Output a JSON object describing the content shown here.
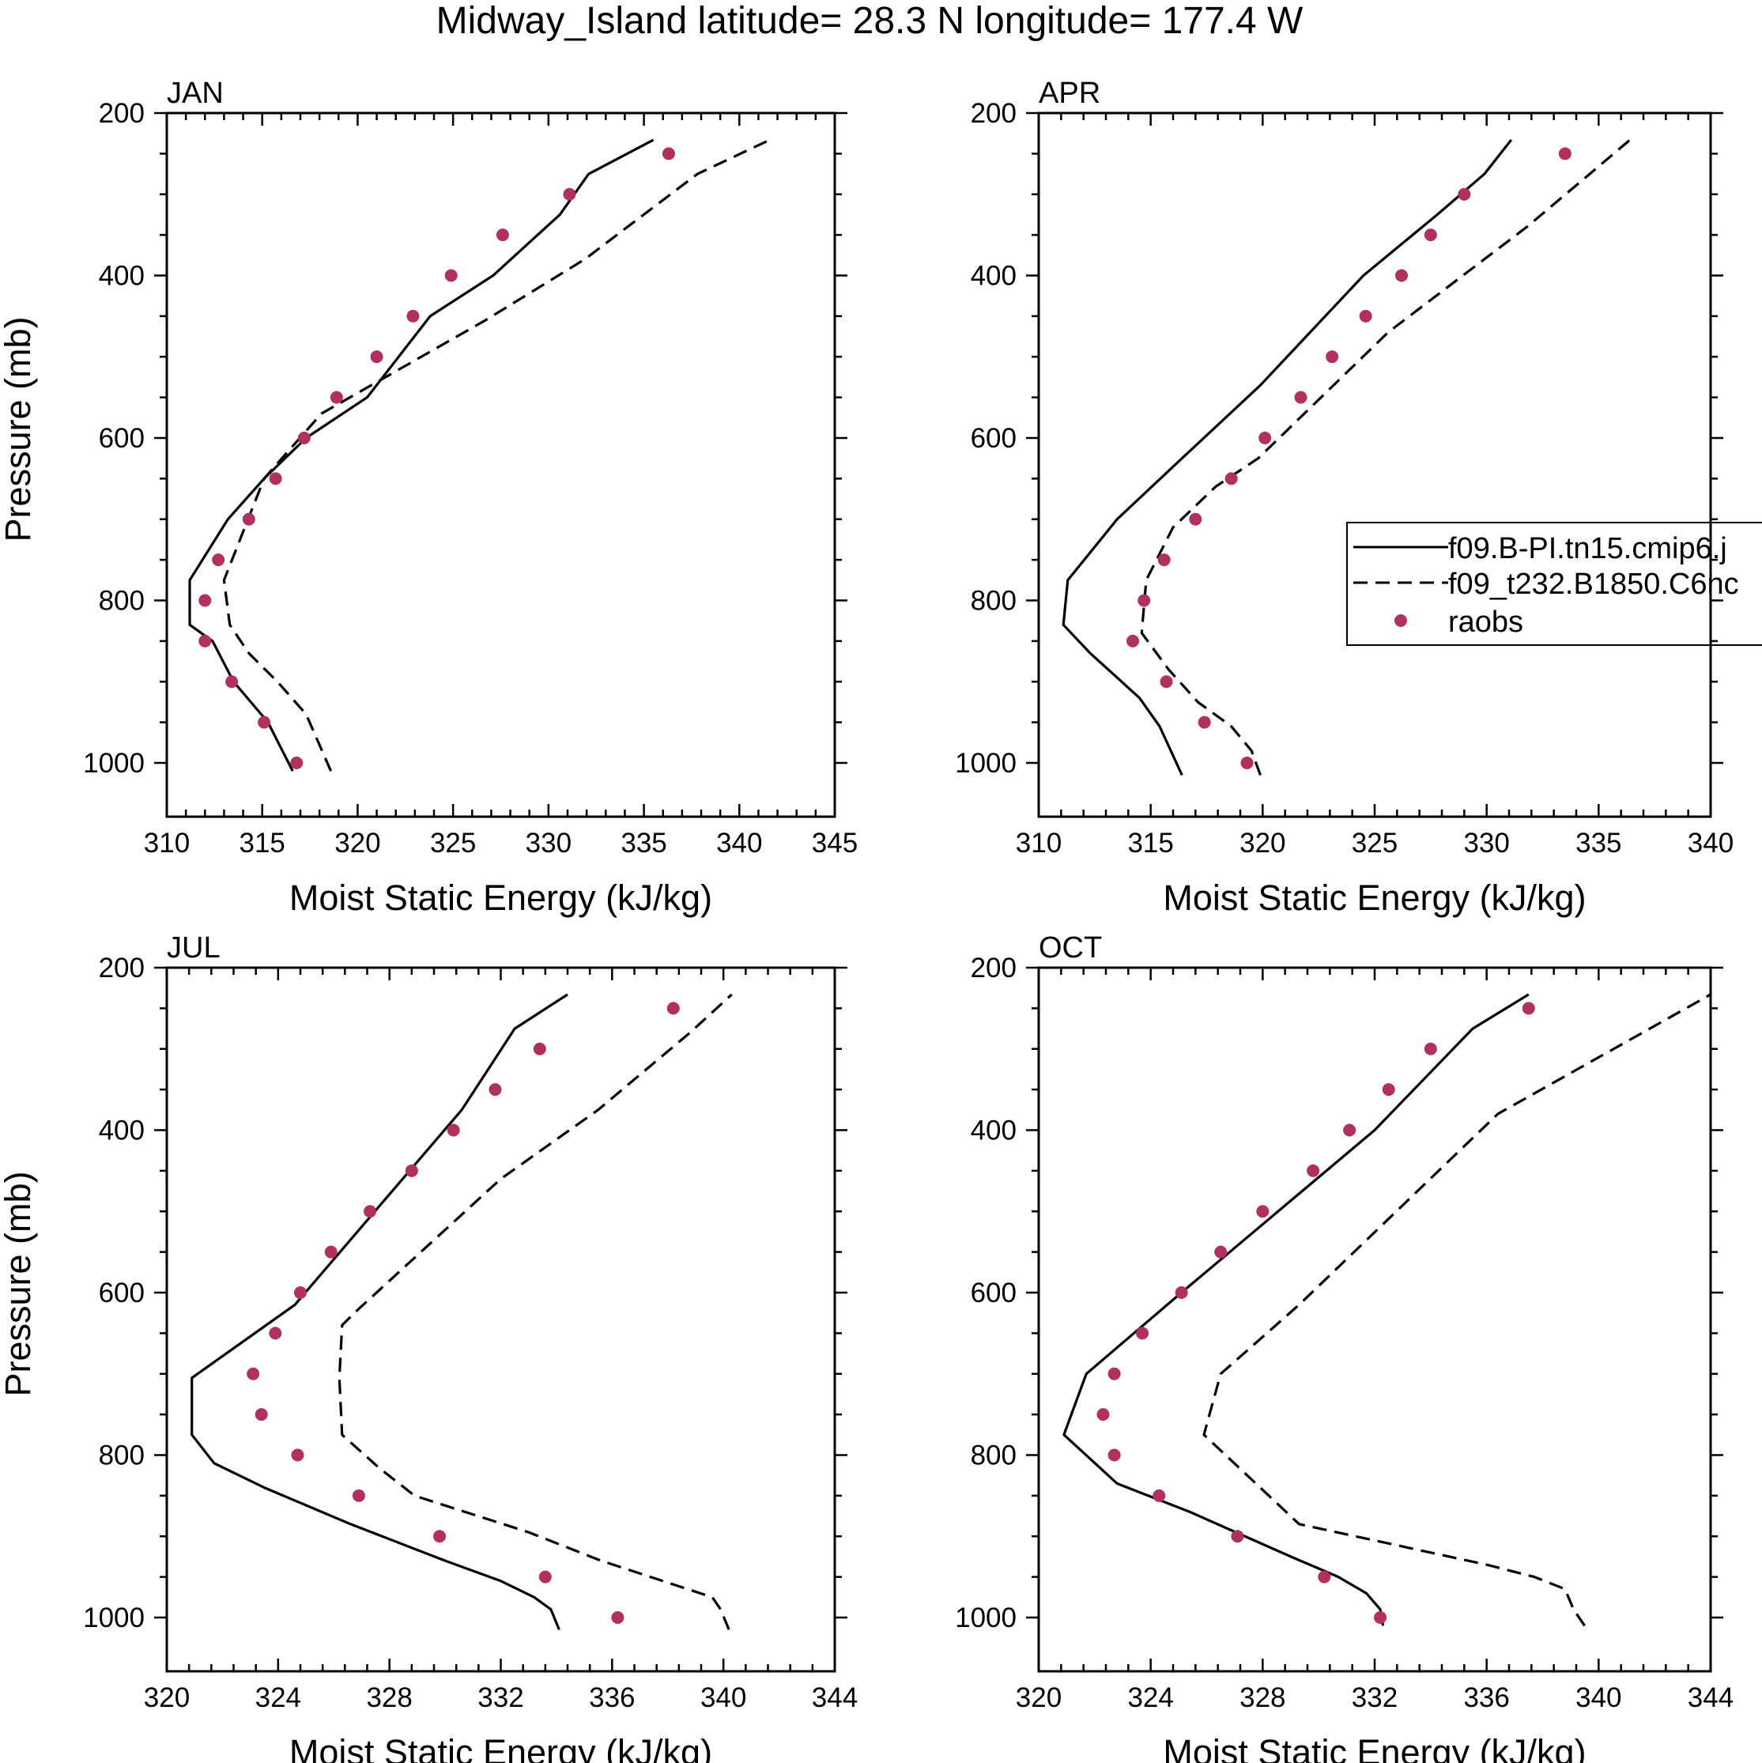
{
  "figure_title": "Midway_Island  latitude= 28.3 N longitude= 177.4 W",
  "chart_data": [
    {
      "type": "line",
      "panel": "JAN",
      "xlabel": "Moist Static Energy (kJ/kg)",
      "ylabel": "Pressure (mb)",
      "xlim": [
        310,
        345
      ],
      "xticks": [
        310,
        315,
        320,
        325,
        330,
        335,
        340,
        345
      ],
      "ylim": [
        200,
        1000
      ],
      "yticks": [
        200,
        400,
        600,
        800,
        1000
      ],
      "y_reversed": true,
      "grid": false,
      "series": [
        {
          "name": "f09.B-PI.tn15.cmip6.j",
          "style": "solid",
          "x": [
            316.6,
            315.3,
            313.5,
            312.4,
            311.2,
            311.2,
            313.2,
            315.1,
            317.3,
            320.5,
            323.8,
            327.1,
            330.6,
            332.1,
            335.5
          ],
          "y": [
            1010,
            950,
            900,
            850,
            830,
            775,
            700,
            650,
            600,
            550,
            450,
            400,
            325,
            275,
            233
          ]
        },
        {
          "name": "f09_t232.B1850.C6nc",
          "style": "dashed",
          "x": [
            318.6,
            317.3,
            315.8,
            314.3,
            313.3,
            313.0,
            315.1,
            318.1,
            326.7,
            331.9,
            337.8,
            341.6
          ],
          "y": [
            1010,
            940,
            900,
            865,
            830,
            775,
            650,
            570,
            455,
            380,
            275,
            233
          ]
        },
        {
          "name": "raobs",
          "style": "markers",
          "x": [
            316.8,
            315.1,
            313.4,
            312.0,
            312.0,
            312.7,
            314.3,
            315.7,
            317.2,
            318.9,
            321.0,
            322.9,
            324.9,
            327.6,
            331.1,
            336.3
          ],
          "y": [
            1000,
            950,
            900,
            850,
            800,
            750,
            700,
            650,
            600,
            550,
            500,
            450,
            400,
            350,
            300,
            250
          ]
        }
      ]
    },
    {
      "type": "line",
      "panel": "APR",
      "xlabel": "Moist Static Energy (kJ/kg)",
      "ylabel": "",
      "xlim": [
        310,
        340
      ],
      "xticks": [
        310,
        315,
        320,
        325,
        330,
        335,
        340
      ],
      "ylim": [
        200,
        1000
      ],
      "yticks": [
        200,
        400,
        600,
        800,
        1000
      ],
      "y_reversed": true,
      "grid": false,
      "series": [
        {
          "name": "f09.B-PI.tn15.cmip6.j",
          "style": "solid",
          "x": [
            316.4,
            315.4,
            314.5,
            313.5,
            312.3,
            311.1,
            311.3,
            313.5,
            316.4,
            319.9,
            324.5,
            327.8,
            329.9,
            331.1
          ],
          "y": [
            1015,
            955,
            920,
            895,
            865,
            830,
            775,
            700,
            625,
            535,
            400,
            325,
            275,
            233
          ]
        },
        {
          "name": "f09_t232.B1850.C6nc",
          "style": "dashed",
          "x": [
            319.9,
            319.5,
            318.6,
            317.1,
            315.8,
            314.6,
            314.8,
            316.0,
            317.9,
            319.8,
            325.6,
            331.8,
            334.6,
            336.4
          ],
          "y": [
            1015,
            985,
            955,
            925,
            885,
            840,
            775,
            710,
            660,
            625,
            470,
            340,
            275,
            233
          ]
        },
        {
          "name": "raobs",
          "style": "markers",
          "x": [
            319.3,
            317.4,
            315.7,
            314.2,
            314.7,
            315.6,
            317.0,
            318.6,
            320.1,
            321.7,
            323.1,
            324.6,
            326.2,
            327.5,
            329.0,
            333.5
          ],
          "y": [
            1000,
            950,
            900,
            850,
            800,
            750,
            700,
            650,
            600,
            550,
            500,
            450,
            400,
            350,
            300,
            250
          ]
        }
      ]
    },
    {
      "type": "line",
      "panel": "JUL",
      "xlabel": "Moist Static Energy (kJ/kg)",
      "ylabel": "Pressure (mb)",
      "xlim": [
        320,
        344
      ],
      "xticks": [
        320,
        324,
        328,
        332,
        336,
        340,
        344
      ],
      "ylim": [
        200,
        1000
      ],
      "yticks": [
        200,
        400,
        600,
        800,
        1000
      ],
      "y_reversed": true,
      "grid": false,
      "series": [
        {
          "name": "f09.B-PI.tn15.cmip6.j",
          "style": "solid",
          "x": [
            334.1,
            333.8,
            333.2,
            332.0,
            330.0,
            326.6,
            323.5,
            321.7,
            320.9,
            320.9,
            324.6,
            330.6,
            332.5,
            334.4
          ],
          "y": [
            1015,
            990,
            975,
            955,
            930,
            885,
            840,
            810,
            775,
            705,
            615,
            375,
            275,
            233
          ]
        },
        {
          "name": "f09_t232.B1850.C6nc",
          "style": "dashed",
          "x": [
            340.2,
            339.9,
            339.6,
            335.6,
            333.0,
            328.9,
            327.6,
            326.3,
            326.2,
            326.3,
            326.9,
            332.0,
            335.5,
            338.8,
            340.3
          ],
          "y": [
            1015,
            990,
            975,
            930,
            895,
            850,
            815,
            775,
            705,
            640,
            620,
            460,
            375,
            280,
            233
          ]
        },
        {
          "name": "raobs",
          "style": "markers",
          "x": [
            336.2,
            333.6,
            329.8,
            326.9,
            324.7,
            323.4,
            323.1,
            323.9,
            324.8,
            325.9,
            327.3,
            328.8,
            330.3,
            331.8,
            333.4,
            338.2
          ],
          "y": [
            1000,
            950,
            900,
            850,
            800,
            750,
            700,
            650,
            600,
            550,
            500,
            450,
            400,
            350,
            300,
            250
          ]
        }
      ]
    },
    {
      "type": "line",
      "panel": "OCT",
      "xlabel": "Moist Static Energy (kJ/kg)",
      "ylabel": "",
      "xlim": [
        320,
        344
      ],
      "xticks": [
        320,
        324,
        328,
        332,
        336,
        340,
        344
      ],
      "ylim": [
        200,
        1000
      ],
      "yticks": [
        200,
        400,
        600,
        800,
        1000
      ],
      "y_reversed": true,
      "grid": false,
      "series": [
        {
          "name": "f09.B-PI.tn15.cmip6.j",
          "style": "solid",
          "x": [
            332.3,
            332.2,
            331.7,
            330.7,
            329.0,
            325.4,
            322.8,
            320.9,
            321.7,
            325.1,
            332.0,
            335.5,
            337.5
          ],
          "y": [
            1010,
            990,
            970,
            950,
            925,
            870,
            835,
            775,
            700,
            600,
            400,
            275,
            233
          ]
        },
        {
          "name": "f09_t232.B1850.C6nc",
          "style": "dashed",
          "x": [
            339.5,
            339.1,
            338.8,
            337.7,
            336.0,
            329.3,
            325.9,
            326.5,
            329.3,
            336.4,
            344.0
          ],
          "y": [
            1010,
            990,
            965,
            950,
            935,
            885,
            775,
            700,
            615,
            380,
            233
          ]
        },
        {
          "name": "raobs",
          "style": "markers",
          "x": [
            332.2,
            330.2,
            327.1,
            324.3,
            322.7,
            322.3,
            322.7,
            323.7,
            325.1,
            326.5,
            328.0,
            329.8,
            331.1,
            332.5,
            334.0,
            337.5
          ],
          "y": [
            1000,
            950,
            900,
            850,
            800,
            750,
            700,
            650,
            600,
            550,
            500,
            450,
            400,
            350,
            300,
            250
          ]
        }
      ]
    }
  ],
  "legend": {
    "panel": "APR",
    "location": "right",
    "entries": [
      {
        "label": "f09.B-PI.tn15.cmip6.j",
        "style": "solid"
      },
      {
        "label": "f09_t232.B1850.C6nc",
        "style": "dashed"
      },
      {
        "label": "raobs",
        "style": "markers"
      }
    ]
  },
  "colors": {
    "line": "#000000",
    "marker": "#b03060",
    "background": "#ffffff"
  }
}
